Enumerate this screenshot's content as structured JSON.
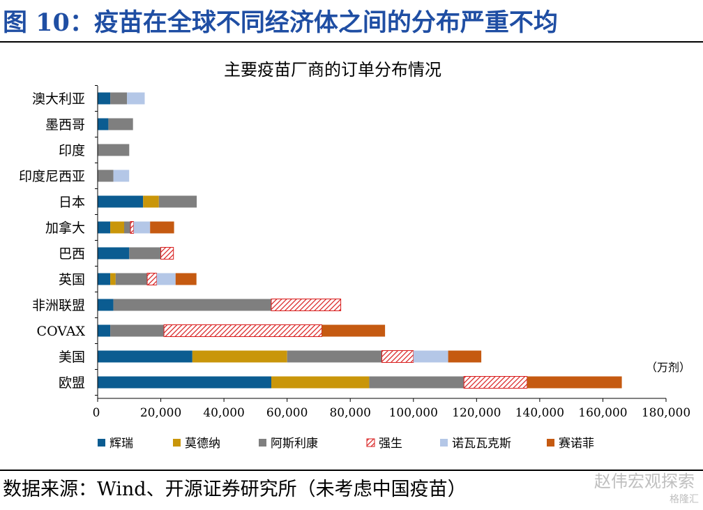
{
  "figure_title": "图 10：疫苗在全球不同经济体之间的分布严重不均",
  "source_text": "数据来源：Wind、开源证券研究所（未考虑中国疫苗）",
  "watermark": "赵伟宏观探索",
  "watermark2": "格隆汇",
  "chart_data": {
    "type": "bar",
    "orientation": "horizontal",
    "stacked": true,
    "title": "主要疫苗厂商的订单分布情况",
    "unit_label": "（万剂）",
    "xlim": [
      0,
      180000
    ],
    "x_ticks": [
      "0",
      "20,000",
      "40,000",
      "60,000",
      "80,000",
      "100,000",
      "120,000",
      "140,000",
      "160,000",
      "180,000"
    ],
    "x_tick_values": [
      0,
      20000,
      40000,
      60000,
      80000,
      100000,
      120000,
      140000,
      160000,
      180000
    ],
    "grid": false,
    "legend_position": "bottom",
    "categories": [
      "澳大利亚",
      "墨西哥",
      "印度",
      "印度尼西亚",
      "日本",
      "加拿大",
      "巴西",
      "英国",
      "非洲联盟",
      "COVAX",
      "美国",
      "欧盟"
    ],
    "series": [
      {
        "name": "辉瑞",
        "color": "#0b5c91",
        "pattern": "solid",
        "values": [
          4000,
          3400,
          0,
          0,
          14400,
          4000,
          10000,
          4000,
          5000,
          4000,
          30000,
          55000
        ]
      },
      {
        "name": "莫德纳",
        "color": "#c9960a",
        "pattern": "solid",
        "values": [
          0,
          0,
          0,
          0,
          5000,
          4400,
          0,
          1700,
          0,
          0,
          30000,
          31000
        ]
      },
      {
        "name": "阿斯利康",
        "color": "#7f7f7f",
        "pattern": "solid",
        "values": [
          5300,
          7800,
          10000,
          5000,
          12000,
          2000,
          10000,
          10000,
          50000,
          17000,
          30000,
          30000
        ]
      },
      {
        "name": "强生",
        "color": "#d81b1b",
        "pattern": "hatch",
        "values": [
          0,
          0,
          0,
          0,
          0,
          1000,
          4000,
          3000,
          22000,
          50000,
          10000,
          20000
        ]
      },
      {
        "name": "诺瓦瓦克斯",
        "color": "#b4c7e7",
        "pattern": "solid",
        "values": [
          5600,
          0,
          0,
          5000,
          0,
          5200,
          0,
          6000,
          0,
          0,
          11000,
          0
        ]
      },
      {
        "name": "赛诺菲",
        "color": "#c55a11",
        "pattern": "solid",
        "values": [
          0,
          0,
          0,
          0,
          0,
          7600,
          0,
          6600,
          0,
          20000,
          10500,
          30000
        ]
      }
    ]
  }
}
